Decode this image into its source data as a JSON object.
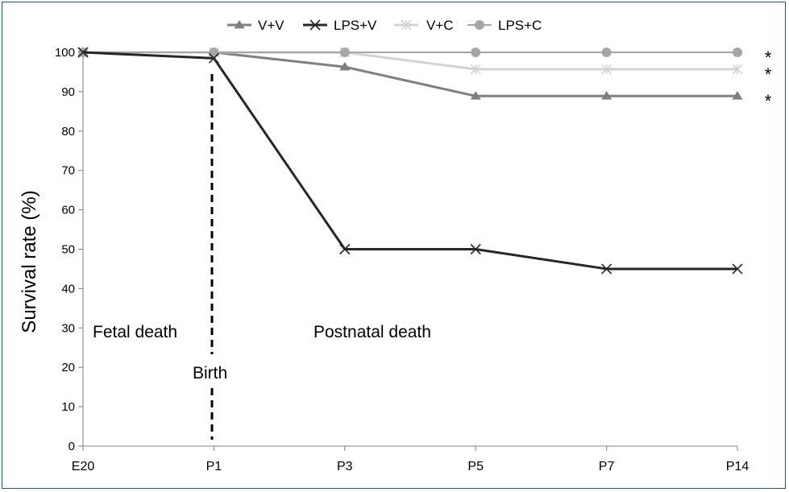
{
  "chart_data": {
    "type": "line",
    "title": "",
    "xlabel": "",
    "ylabel": "Survival rate (%)",
    "categories": [
      "E20",
      "P1",
      "P3",
      "P5",
      "P7",
      "P14"
    ],
    "ylim": [
      0,
      100
    ],
    "yticks": [
      "0",
      "10",
      "20",
      "30",
      "40",
      "50",
      "60",
      "70",
      "80",
      "90",
      "100"
    ],
    "legend_position": "top",
    "series": [
      {
        "name": "V+V",
        "values": [
          100,
          100,
          96.3,
          88.9,
          88.9,
          88.9
        ],
        "color": "#7f7f7f",
        "marker": "triangle",
        "stroke_width": 3
      },
      {
        "name": "LPS+V",
        "values": [
          100,
          98.5,
          50,
          50,
          45,
          45
        ],
        "color": "#262626",
        "marker": "x",
        "stroke_width": 3
      },
      {
        "name": "V+C",
        "values": [
          100,
          100,
          100,
          95.7,
          95.7,
          95.7
        ],
        "color": "#d3d3d3",
        "marker": "star",
        "stroke_width": 3
      },
      {
        "name": "LPS+C",
        "values": [
          100,
          100,
          100,
          100,
          100,
          100
        ],
        "color": "#a6a6a6",
        "marker": "circle",
        "stroke_width": 2
      }
    ],
    "annotations": {
      "fetal_death": "Fetal death",
      "postnatal_death": "Postnatal death",
      "birth": "Birth",
      "significance_marks": [
        "*",
        "*",
        "*"
      ]
    }
  }
}
